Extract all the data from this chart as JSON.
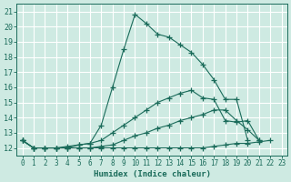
{
  "xlabel": "Humidex (Indice chaleur)",
  "xlim": [
    -0.5,
    23.5
  ],
  "ylim": [
    11.5,
    21.5
  ],
  "xticks": [
    0,
    1,
    2,
    3,
    4,
    5,
    6,
    7,
    8,
    9,
    10,
    11,
    12,
    13,
    14,
    15,
    16,
    17,
    18,
    19,
    20,
    21,
    22,
    23
  ],
  "yticks": [
    12,
    13,
    14,
    15,
    16,
    17,
    18,
    19,
    20,
    21
  ],
  "background_color": "#ceeae2",
  "grid_color": "#ffffff",
  "line_color": "#1a6b5a",
  "curves": [
    {
      "x": [
        0,
        1,
        2,
        3,
        4,
        5,
        6,
        7,
        8,
        9,
        10,
        11,
        12,
        13,
        14,
        15,
        16,
        17,
        18,
        19,
        20
      ],
      "y": [
        12.5,
        12.0,
        12.0,
        12.0,
        12.0,
        12.2,
        12.3,
        13.5,
        16.0,
        18.5,
        20.8,
        20.2,
        19.5,
        19.3,
        18.8,
        18.3,
        17.5,
        16.5,
        15.2,
        15.2,
        12.5
      ]
    },
    {
      "x": [
        0,
        1,
        2,
        3,
        4,
        5,
        6,
        7,
        8,
        9,
        10,
        11,
        12,
        13,
        14,
        15,
        16,
        17,
        18,
        19,
        20,
        21,
        22,
        23
      ],
      "y": [
        12.5,
        12.0,
        12.0,
        12.0,
        12.1,
        12.2,
        12.3,
        12.5,
        13.0,
        13.5,
        14.0,
        14.5,
        15.0,
        15.3,
        15.6,
        15.8,
        15.3,
        15.2,
        13.8,
        13.7,
        13.8,
        12.5,
        null,
        null
      ]
    },
    {
      "x": [
        0,
        1,
        2,
        3,
        4,
        5,
        6,
        7,
        8,
        9,
        10,
        11,
        12,
        13,
        14,
        15,
        16,
        17,
        18,
        19,
        20,
        21,
        22,
        23
      ],
      "y": [
        12.5,
        12.0,
        12.0,
        12.0,
        12.0,
        12.0,
        12.0,
        12.1,
        12.2,
        12.5,
        12.8,
        13.0,
        13.3,
        13.5,
        13.8,
        14.0,
        14.2,
        14.5,
        14.5,
        13.8,
        13.2,
        12.5,
        null,
        null
      ]
    },
    {
      "x": [
        0,
        1,
        2,
        3,
        4,
        5,
        6,
        7,
        8,
        9,
        10,
        11,
        12,
        13,
        14,
        15,
        16,
        17,
        18,
        19,
        20,
        21,
        22,
        23
      ],
      "y": [
        12.5,
        12.0,
        12.0,
        12.0,
        12.0,
        12.0,
        12.0,
        12.0,
        12.0,
        12.0,
        12.0,
        12.0,
        12.0,
        12.0,
        12.0,
        12.0,
        12.0,
        12.1,
        12.2,
        12.3,
        12.3,
        12.4,
        12.5,
        null
      ]
    }
  ]
}
